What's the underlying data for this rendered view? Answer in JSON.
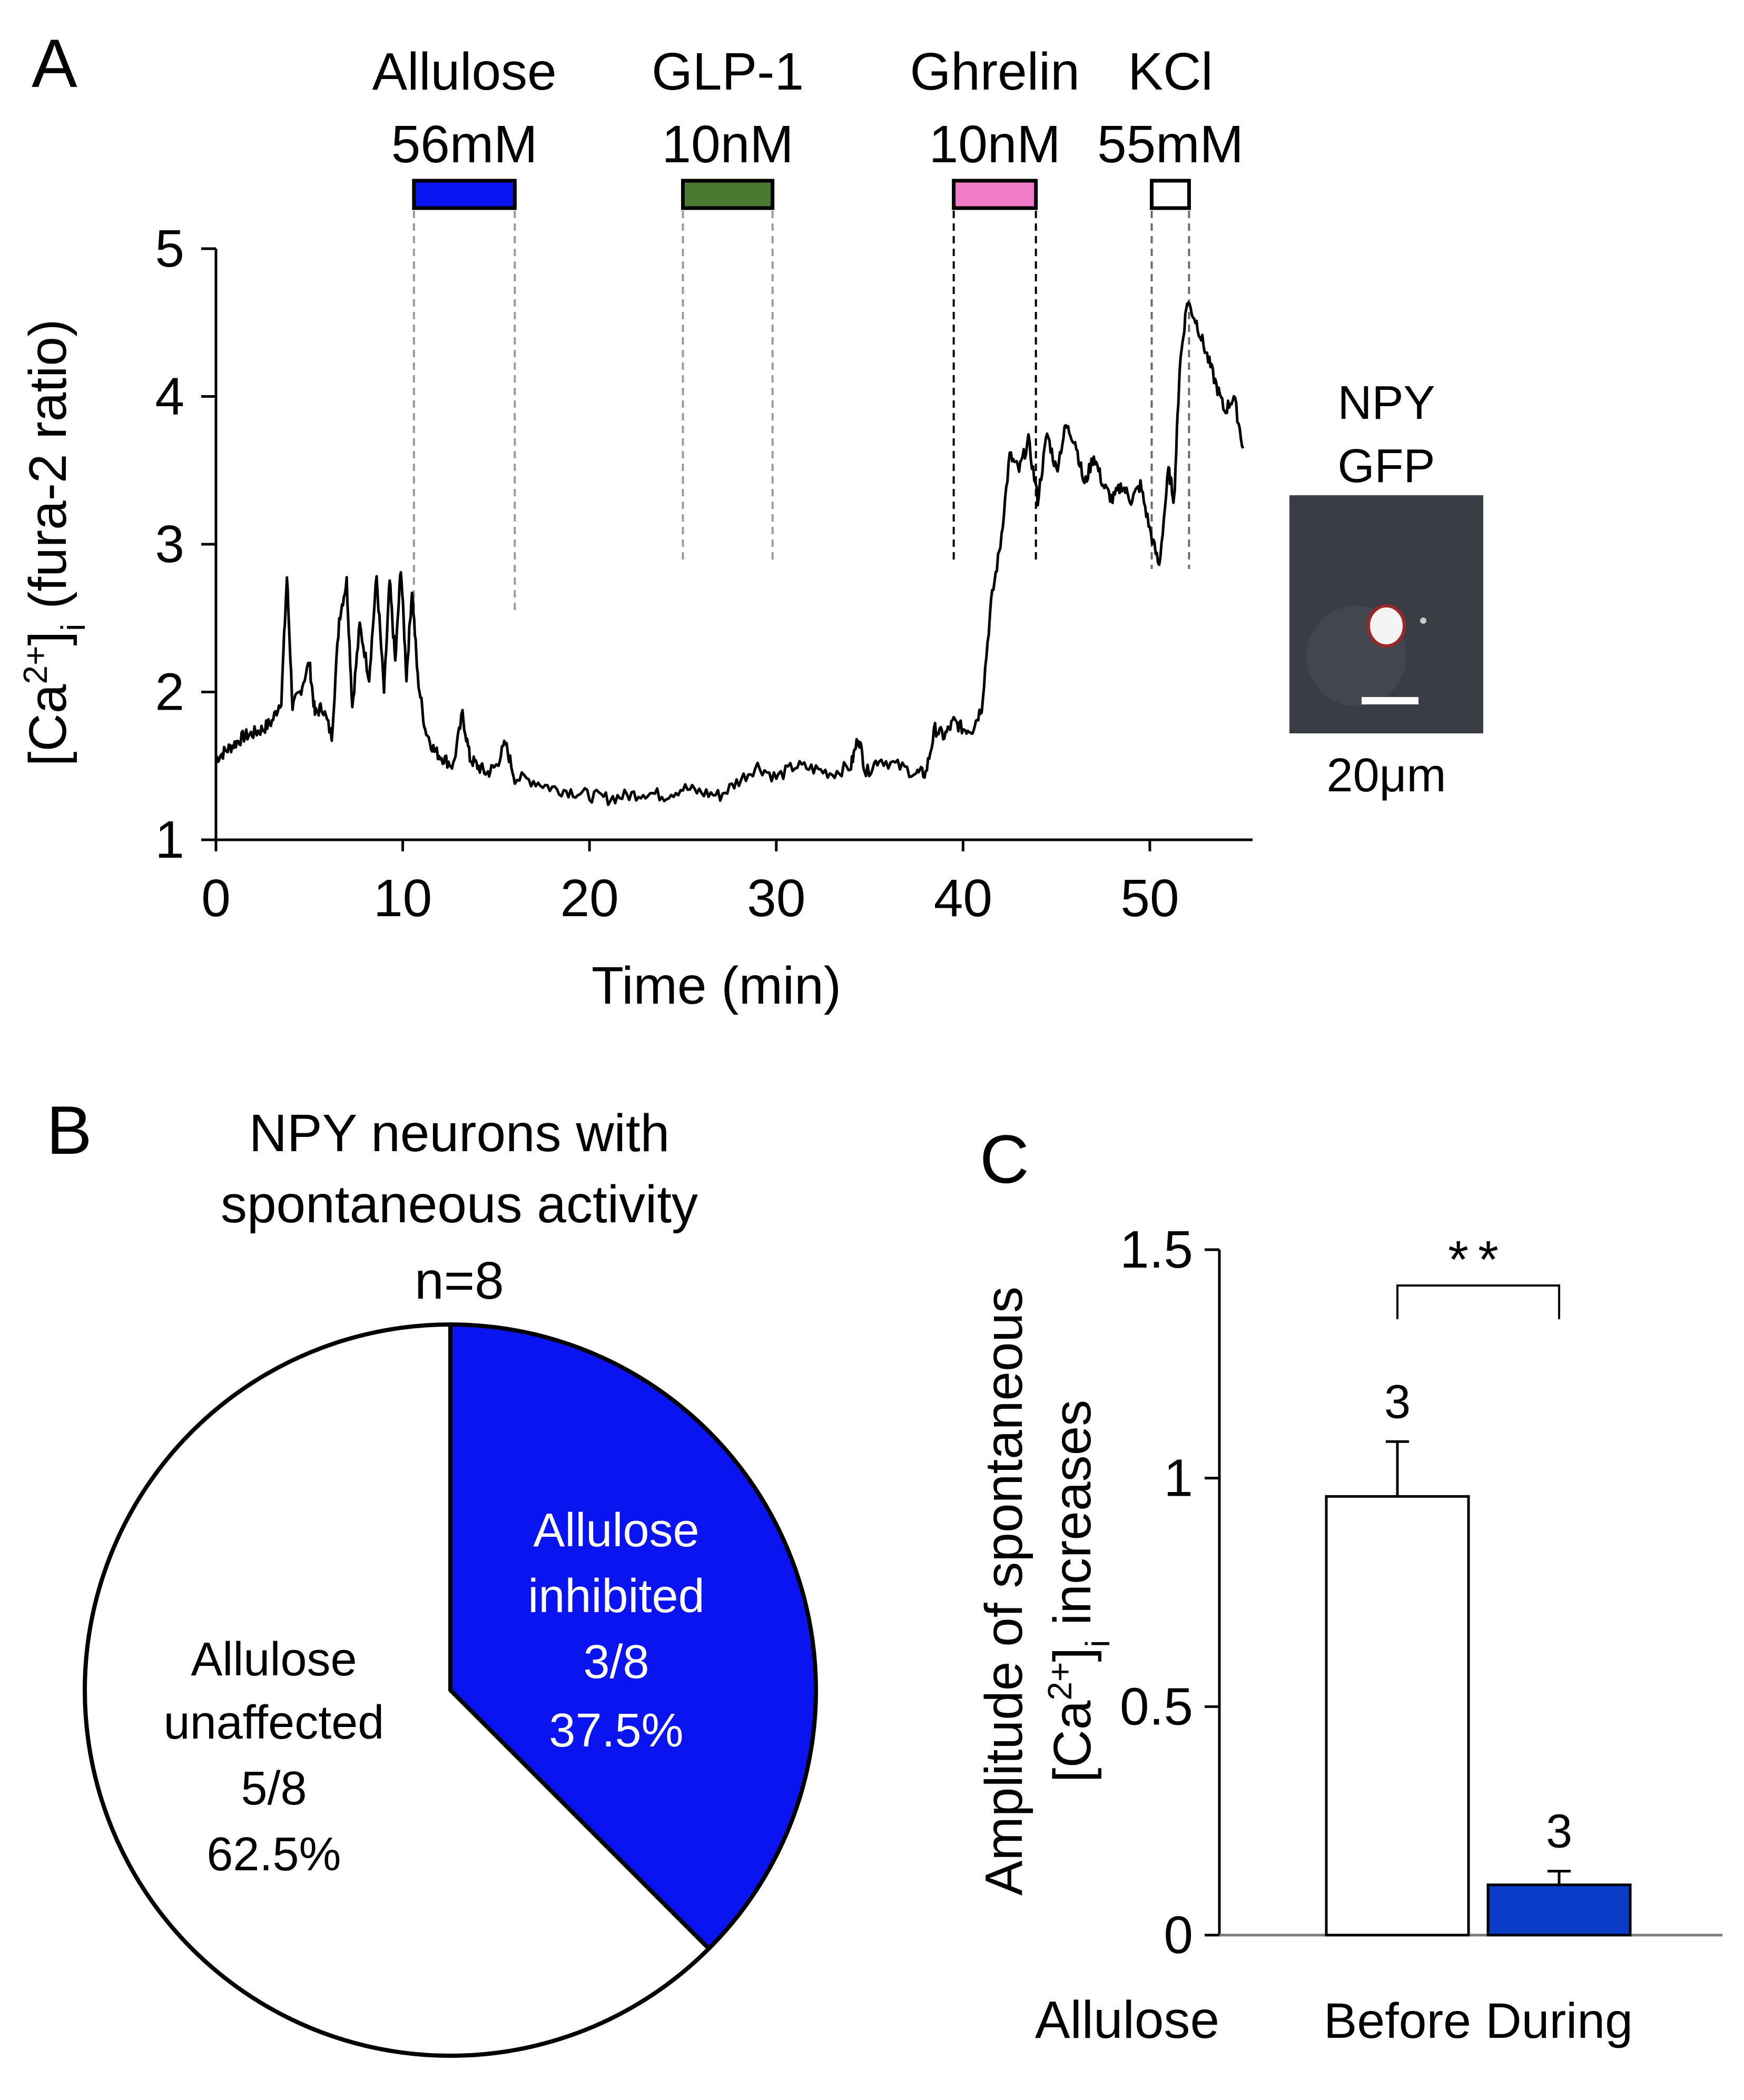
{
  "panel_labels": {
    "a": "A",
    "b": "B",
    "c": "C"
  },
  "colors": {
    "allulose": "#0a14f0",
    "glp1": "#4a7a32",
    "ghrelin": "#f07cc8",
    "kcl": "#ffffff",
    "bar_during": "#0a3cc8",
    "pie_inhibited": "#0a14f0",
    "pie_unaffected": "#ffffff",
    "image_bg": "#3a3d44"
  },
  "chart_data": [
    {
      "panel": "A",
      "type": "line",
      "xlabel": "Time (min)",
      "ylabel_parts": {
        "pre": "[Ca",
        "sup": "2+",
        "mid": "]",
        "sub": "i",
        "post": " (fura-2 ratio)"
      },
      "xlim": [
        0,
        55.5
      ],
      "ylim": [
        1,
        5
      ],
      "xticks": [
        0,
        10,
        20,
        30,
        40,
        50
      ],
      "yticks": [
        1,
        2,
        3,
        4,
        5
      ],
      "applications": [
        {
          "name": "Allulose",
          "conc": "56mM",
          "start": 10.6,
          "end": 16.0,
          "color_key": "allulose"
        },
        {
          "name": "GLP-1",
          "conc": "10nM",
          "start": 25.0,
          "end": 29.8,
          "color_key": "glp1"
        },
        {
          "name": "Ghrelin",
          "conc": "10nM",
          "start": 39.5,
          "end": 43.9,
          "color_key": "ghrelin"
        },
        {
          "name": "KCl",
          "conc": "55mM",
          "start": 50.1,
          "end": 52.1,
          "color_key": "kcl"
        }
      ],
      "trace": {
        "x": [
          0,
          0.5,
          1,
          1.5,
          2,
          2.5,
          3,
          3.5,
          3.8,
          4.1,
          4.5,
          5,
          5.3,
          5.7,
          6.2,
          6.6,
          7,
          7.3,
          7.7,
          8.2,
          8.6,
          9,
          9.3,
          9.6,
          9.9,
          10.2,
          10.5,
          10.8,
          11.2,
          11.7,
          12.2,
          12.7,
          13.2,
          13.6,
          14,
          14.5,
          15,
          15.5,
          16,
          17,
          18,
          19,
          20,
          21,
          22,
          23,
          24,
          25,
          26,
          27,
          28,
          29,
          30,
          31,
          32,
          33,
          34,
          34.4,
          34.8,
          35.5,
          36.5,
          37.5,
          38,
          38.5,
          39,
          39.5,
          40,
          40.5,
          41,
          41.5,
          42,
          42.5,
          43,
          43.5,
          44,
          44.5,
          45,
          45.5,
          46,
          46.5,
          47,
          47.5,
          48,
          48.5,
          49,
          49.5,
          50,
          50.5,
          51,
          51.3,
          51.6,
          52,
          52.5,
          53,
          53.5,
          54,
          54.5,
          55
        ],
        "y": [
          1.55,
          1.6,
          1.65,
          1.7,
          1.72,
          1.75,
          1.8,
          1.95,
          2.78,
          1.9,
          2.0,
          2.2,
          1.85,
          1.9,
          1.7,
          2.5,
          2.75,
          1.9,
          2.45,
          2.1,
          2.78,
          2.0,
          2.75,
          2.2,
          2.85,
          2.1,
          2.7,
          2.1,
          1.75,
          1.6,
          1.55,
          1.5,
          1.85,
          1.55,
          1.5,
          1.45,
          1.5,
          1.65,
          1.42,
          1.4,
          1.35,
          1.33,
          1.3,
          1.28,
          1.3,
          1.32,
          1.3,
          1.35,
          1.32,
          1.3,
          1.4,
          1.5,
          1.42,
          1.5,
          1.48,
          1.45,
          1.5,
          1.7,
          1.45,
          1.55,
          1.5,
          1.45,
          1.45,
          1.75,
          1.7,
          1.8,
          1.75,
          1.75,
          1.9,
          2.6,
          3.0,
          3.6,
          3.5,
          3.7,
          3.3,
          3.75,
          3.5,
          3.8,
          3.7,
          3.4,
          3.6,
          3.4,
          3.3,
          3.4,
          3.3,
          3.4,
          3.1,
          2.85,
          3.5,
          3.3,
          4.2,
          4.65,
          4.5,
          4.3,
          4.1,
          3.9,
          4.0,
          3.65
        ],
        "note": "estimated from figure"
      },
      "inset": {
        "label_line1": "NPY",
        "label_line2": "GFP",
        "scale_label": "20μm"
      }
    },
    {
      "panel": "B",
      "type": "pie",
      "title_line1": "NPY neurons with",
      "title_line2": "spontaneous activity",
      "n_label": "n=8",
      "slices": [
        {
          "label_line1": "Allulose",
          "label_line2": "inhibited",
          "fraction": "3/8",
          "percent": "37.5%",
          "value": 37.5,
          "color_key": "pie_inhibited"
        },
        {
          "label_line1": "Allulose",
          "label_line2": "unaffected",
          "fraction": "5/8",
          "percent": "62.5%",
          "value": 62.5,
          "color_key": "pie_unaffected"
        }
      ]
    },
    {
      "panel": "C",
      "type": "bar",
      "ylabel_line1": "Amplitude of spontaneous",
      "ylabel_line2_parts": {
        "pre": "[Ca",
        "sup": "2+",
        "mid": "]",
        "sub": "i",
        "post": " increases"
      },
      "xlabel": "Allulose",
      "categories": [
        "Before",
        "During"
      ],
      "values": [
        0.96,
        0.11
      ],
      "errors": [
        0.12,
        0.03
      ],
      "n_labels": [
        "3",
        "3"
      ],
      "yticks": [
        0,
        0.5,
        1,
        1.5
      ],
      "ytick_labels": [
        "0",
        "0.5",
        "1",
        "1.5"
      ],
      "ylim": [
        0,
        1.5
      ],
      "significance": "**"
    }
  ]
}
